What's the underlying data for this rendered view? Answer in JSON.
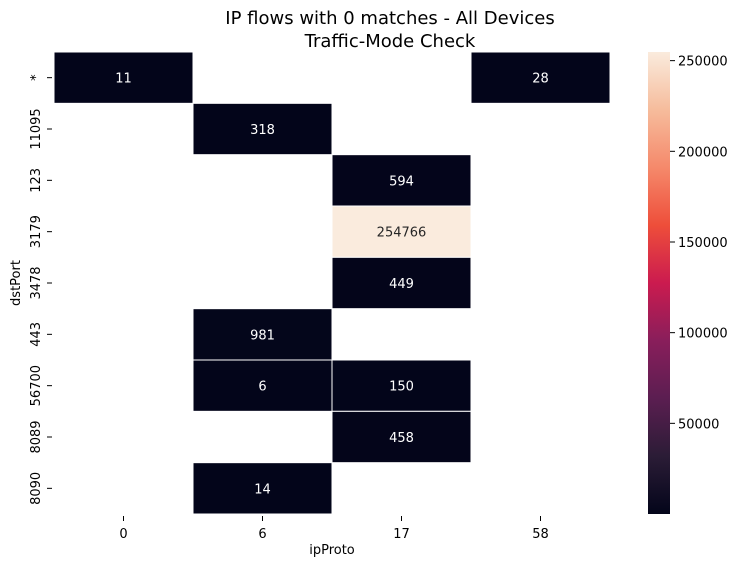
{
  "chart_data": {
    "type": "heatmap",
    "title": [
      "IP flows with 0 matches - All Devices",
      "Traffic-Mode Check"
    ],
    "xlabel": "ipProto",
    "ylabel": "dstPort",
    "x_categories": [
      "0",
      "6",
      "17",
      "58"
    ],
    "y_categories": [
      "*",
      "11095",
      "123",
      "3179",
      "3478",
      "443",
      "56700",
      "8089",
      "8090"
    ],
    "cells": [
      {
        "x": "0",
        "y": "*",
        "value": 11
      },
      {
        "x": "58",
        "y": "*",
        "value": 28
      },
      {
        "x": "6",
        "y": "11095",
        "value": 318
      },
      {
        "x": "17",
        "y": "123",
        "value": 594
      },
      {
        "x": "17",
        "y": "3179",
        "value": 254766
      },
      {
        "x": "17",
        "y": "3478",
        "value": 449
      },
      {
        "x": "6",
        "y": "443",
        "value": 981
      },
      {
        "x": "6",
        "y": "56700",
        "value": 6
      },
      {
        "x": "17",
        "y": "56700",
        "value": 150
      },
      {
        "x": "17",
        "y": "8089",
        "value": 458
      },
      {
        "x": "6",
        "y": "8090",
        "value": 14
      }
    ],
    "colorbar": {
      "colormap": "rocket",
      "range": [
        6,
        254766
      ],
      "ticks": [
        50000,
        100000,
        150000,
        200000,
        250000
      ],
      "tick_labels": [
        "50000",
        "100000",
        "150000",
        "200000",
        "250000"
      ]
    }
  }
}
